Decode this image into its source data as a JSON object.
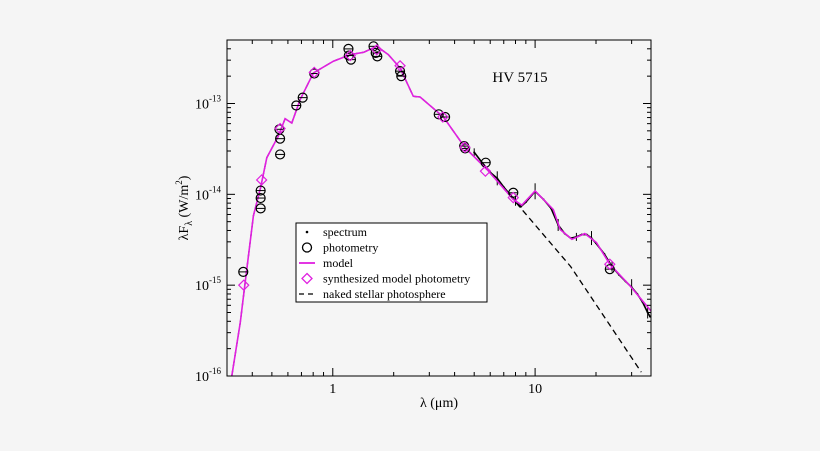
{
  "chart_data": {
    "type": "scatter",
    "annotation": "HV 5715",
    "xlabel": "λ (μm)",
    "ylabel_main": "λF",
    "ylabel_sub": "λ",
    "ylabel_unit": " (W/m",
    "ylabel_sup": "2",
    "ylabel_close": ")",
    "x_scale": "log",
    "y_scale": "log",
    "xlim": [
      0.3,
      37.4
    ],
    "ylim": [
      1e-16,
      5e-13
    ],
    "x_ticks": [
      {
        "value": 1,
        "label": "1"
      },
      {
        "value": 10,
        "label": "10"
      }
    ],
    "y_ticks": [
      {
        "value": 1e-13,
        "base": "10",
        "exp": "-13"
      },
      {
        "value": 1e-14,
        "base": "10",
        "exp": "-14"
      },
      {
        "value": 1e-15,
        "base": "10",
        "exp": "-15"
      },
      {
        "value": 1e-16,
        "base": "10",
        "exp": "-16"
      }
    ],
    "grid": false,
    "legend_position": "center-left",
    "colors": {
      "model": "#e020e0",
      "photometry": "#000000",
      "synth": "#e020e0",
      "photosphere": "#000000",
      "spectrum": "#000000"
    },
    "legend": [
      {
        "key": "spectrum",
        "label": "spectrum"
      },
      {
        "key": "photometry",
        "label": "photometry"
      },
      {
        "key": "model",
        "label": "model"
      },
      {
        "key": "synth",
        "label": "synthesized model photometry"
      },
      {
        "key": "photosphere",
        "label": "naked stellar photosphere"
      }
    ],
    "series": {
      "model": [
        [
          0.317,
          1e-16
        ],
        [
          0.349,
          3.9e-16
        ],
        [
          0.369,
          1.08e-15
        ],
        [
          0.405,
          5.8e-15
        ],
        [
          0.44,
          1.2e-14
        ],
        [
          0.472,
          2.53e-14
        ],
        [
          0.538,
          4.37e-14
        ],
        [
          0.581,
          6.8e-14
        ],
        [
          0.627,
          6.1e-14
        ],
        [
          0.689,
          1.1e-13
        ],
        [
          0.802,
          2.17e-13
        ],
        [
          1.007,
          2.92e-13
        ],
        [
          1.22,
          3.45e-13
        ],
        [
          1.42,
          3.66e-13
        ],
        [
          1.65,
          4.26e-13
        ],
        [
          1.88,
          3.45e-13
        ],
        [
          2.15,
          2.47e-13
        ],
        [
          2.5,
          1.2e-13
        ],
        [
          2.7,
          1.18e-13
        ],
        [
          3.52,
          7.1e-14
        ],
        [
          4.51,
          3.26e-14
        ],
        [
          5.78,
          1.88e-14
        ],
        [
          7.8,
          8.8e-15
        ],
        [
          8.6,
          7.6e-15
        ],
        [
          10,
          1.09e-14
        ],
        [
          12.3,
          6.8e-15
        ],
        [
          13.3,
          4.1e-15
        ],
        [
          15.2,
          3.2e-15
        ],
        [
          17.6,
          3.7e-15
        ],
        [
          20.1,
          2.95e-15
        ],
        [
          23.4,
          1.7e-15
        ],
        [
          29.5,
          9.8e-16
        ],
        [
          37.4,
          5.2e-16
        ]
      ],
      "photosphere": [
        [
          0.317,
          1e-16
        ],
        [
          0.349,
          3.9e-16
        ],
        [
          0.369,
          1.08e-15
        ],
        [
          0.405,
          5.8e-15
        ],
        [
          0.44,
          1.2e-14
        ],
        [
          0.472,
          2.53e-14
        ],
        [
          0.538,
          4.37e-14
        ],
        [
          0.581,
          6.8e-14
        ],
        [
          0.627,
          6.1e-14
        ],
        [
          0.689,
          1.1e-13
        ],
        [
          0.802,
          2.17e-13
        ],
        [
          1.007,
          2.92e-13
        ],
        [
          1.22,
          3.45e-13
        ],
        [
          1.42,
          3.66e-13
        ],
        [
          1.65,
          4.26e-13
        ],
        [
          1.88,
          3.45e-13
        ],
        [
          2.15,
          2.47e-13
        ],
        [
          2.5,
          1.2e-13
        ],
        [
          2.7,
          1.18e-13
        ],
        [
          3.52,
          7.1e-14
        ],
        [
          4.51,
          3.26e-14
        ],
        [
          5.78,
          1.88e-14
        ],
        [
          7.8,
          8.8e-15
        ],
        [
          15,
          1.6e-15
        ],
        [
          33.5,
          1.1e-16
        ]
      ],
      "photometry": [
        [
          0.361,
          1.4e-15
        ],
        [
          0.44,
          1.1e-14
        ],
        [
          0.44,
          9.1e-15
        ],
        [
          0.44,
          7e-15
        ],
        [
          0.545,
          5.2e-14
        ],
        [
          0.549,
          4.1e-14
        ],
        [
          0.549,
          2.75e-14
        ],
        [
          0.66,
          9.5e-14
        ],
        [
          0.71,
          1.16e-13
        ],
        [
          0.81,
          2.14e-13
        ],
        [
          1.195,
          3.99e-13
        ],
        [
          1.2,
          3.37e-13
        ],
        [
          1.23,
          3.04e-13
        ],
        [
          1.59,
          4.26e-13
        ],
        [
          1.63,
          3.6e-13
        ],
        [
          1.66,
          3.3e-13
        ],
        [
          2.15,
          2.27e-13
        ],
        [
          2.18,
          2e-13
        ],
        [
          3.34,
          7.6e-14
        ],
        [
          3.59,
          7.1e-14
        ],
        [
          4.46,
          3.4e-14
        ],
        [
          4.51,
          3.2e-14
        ],
        [
          5.7,
          2.23e-14
        ],
        [
          7.8,
          1.04e-14
        ],
        [
          23.4,
          1.5e-15
        ]
      ],
      "synth": [
        [
          0.363,
          1e-15
        ],
        [
          0.445,
          1.44e-14
        ],
        [
          0.549,
          5.3e-14
        ],
        [
          0.81,
          2.2e-13
        ],
        [
          1.22,
          3.37e-13
        ],
        [
          1.65,
          3.9e-13
        ],
        [
          2.15,
          2.6e-13
        ],
        [
          3.5,
          7.1e-14
        ],
        [
          4.5,
          3.3e-14
        ],
        [
          5.68,
          1.8e-14
        ],
        [
          7.8,
          9.2e-15
        ],
        [
          23.4,
          1.7e-15
        ]
      ],
      "spectrum": [
        [
          5.0,
          2.9e-14
        ],
        [
          5.5,
          2.2e-14
        ],
        [
          6.0,
          1.75e-14
        ],
        [
          6.5,
          1.5e-14
        ],
        [
          7.0,
          1.2e-14
        ],
        [
          7.5,
          1e-14
        ],
        [
          8.0,
          8.5e-15
        ],
        [
          8.5,
          7.3e-15
        ],
        [
          9.0,
          8.2e-15
        ],
        [
          10.0,
          1.08e-14
        ],
        [
          11,
          8.8e-15
        ],
        [
          12,
          7e-15
        ],
        [
          13,
          4.6e-15
        ],
        [
          14,
          3.7e-15
        ],
        [
          15,
          3.3e-15
        ],
        [
          16,
          3.4e-15
        ],
        [
          17,
          3.6e-15
        ],
        [
          18,
          3.6e-15
        ],
        [
          19,
          3.3e-15
        ],
        [
          20,
          2.9e-15
        ],
        [
          22,
          2.2e-15
        ],
        [
          24,
          1.6e-15
        ],
        [
          26,
          1.3e-15
        ],
        [
          28,
          1.1e-15
        ],
        [
          30,
          9.5e-16
        ],
        [
          32,
          8e-16
        ],
        [
          34,
          6.5e-16
        ],
        [
          36,
          5e-16
        ],
        [
          37,
          4.5e-16
        ]
      ]
    }
  }
}
